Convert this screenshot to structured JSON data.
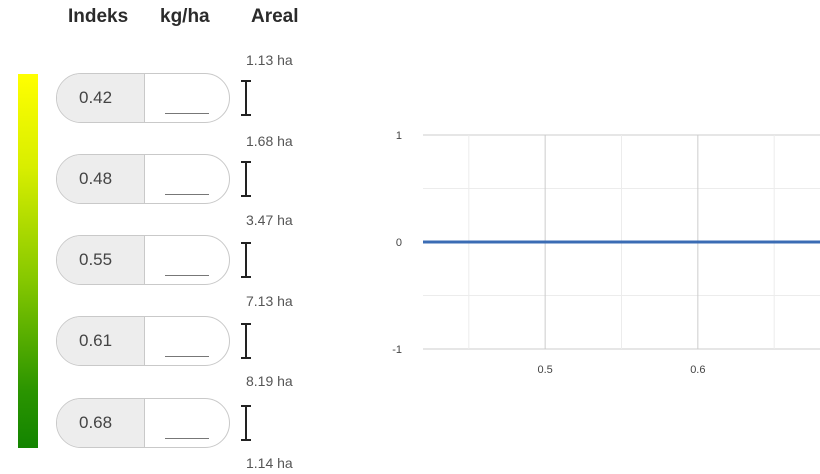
{
  "headers": {
    "index": "Indeks",
    "rate": "kg/ha",
    "area": "Areal"
  },
  "colors": {
    "gradient_top": "#ffff00",
    "gradient_bottom": "#138400",
    "line": "#3b6cb4"
  },
  "rows": [
    {
      "index": "0.42",
      "rate": ""
    },
    {
      "index": "0.48",
      "rate": ""
    },
    {
      "index": "0.55",
      "rate": ""
    },
    {
      "index": "0.61",
      "rate": ""
    },
    {
      "index": "0.68",
      "rate": ""
    }
  ],
  "areas": [
    "1.13 ha",
    "1.68 ha",
    "3.47 ha",
    "7.13 ha",
    "8.19 ha",
    "1.14 ha"
  ],
  "chart_data": {
    "type": "line",
    "x": [
      0.42,
      0.68
    ],
    "series": [
      {
        "values": [
          0,
          0
        ]
      }
    ],
    "xticks": [
      "0.5",
      "0.6"
    ],
    "yticks": [
      "1",
      "0",
      "-1"
    ],
    "xlim": [
      0.42,
      0.68
    ],
    "ylim": [
      -1,
      1
    ],
    "grid": true
  }
}
